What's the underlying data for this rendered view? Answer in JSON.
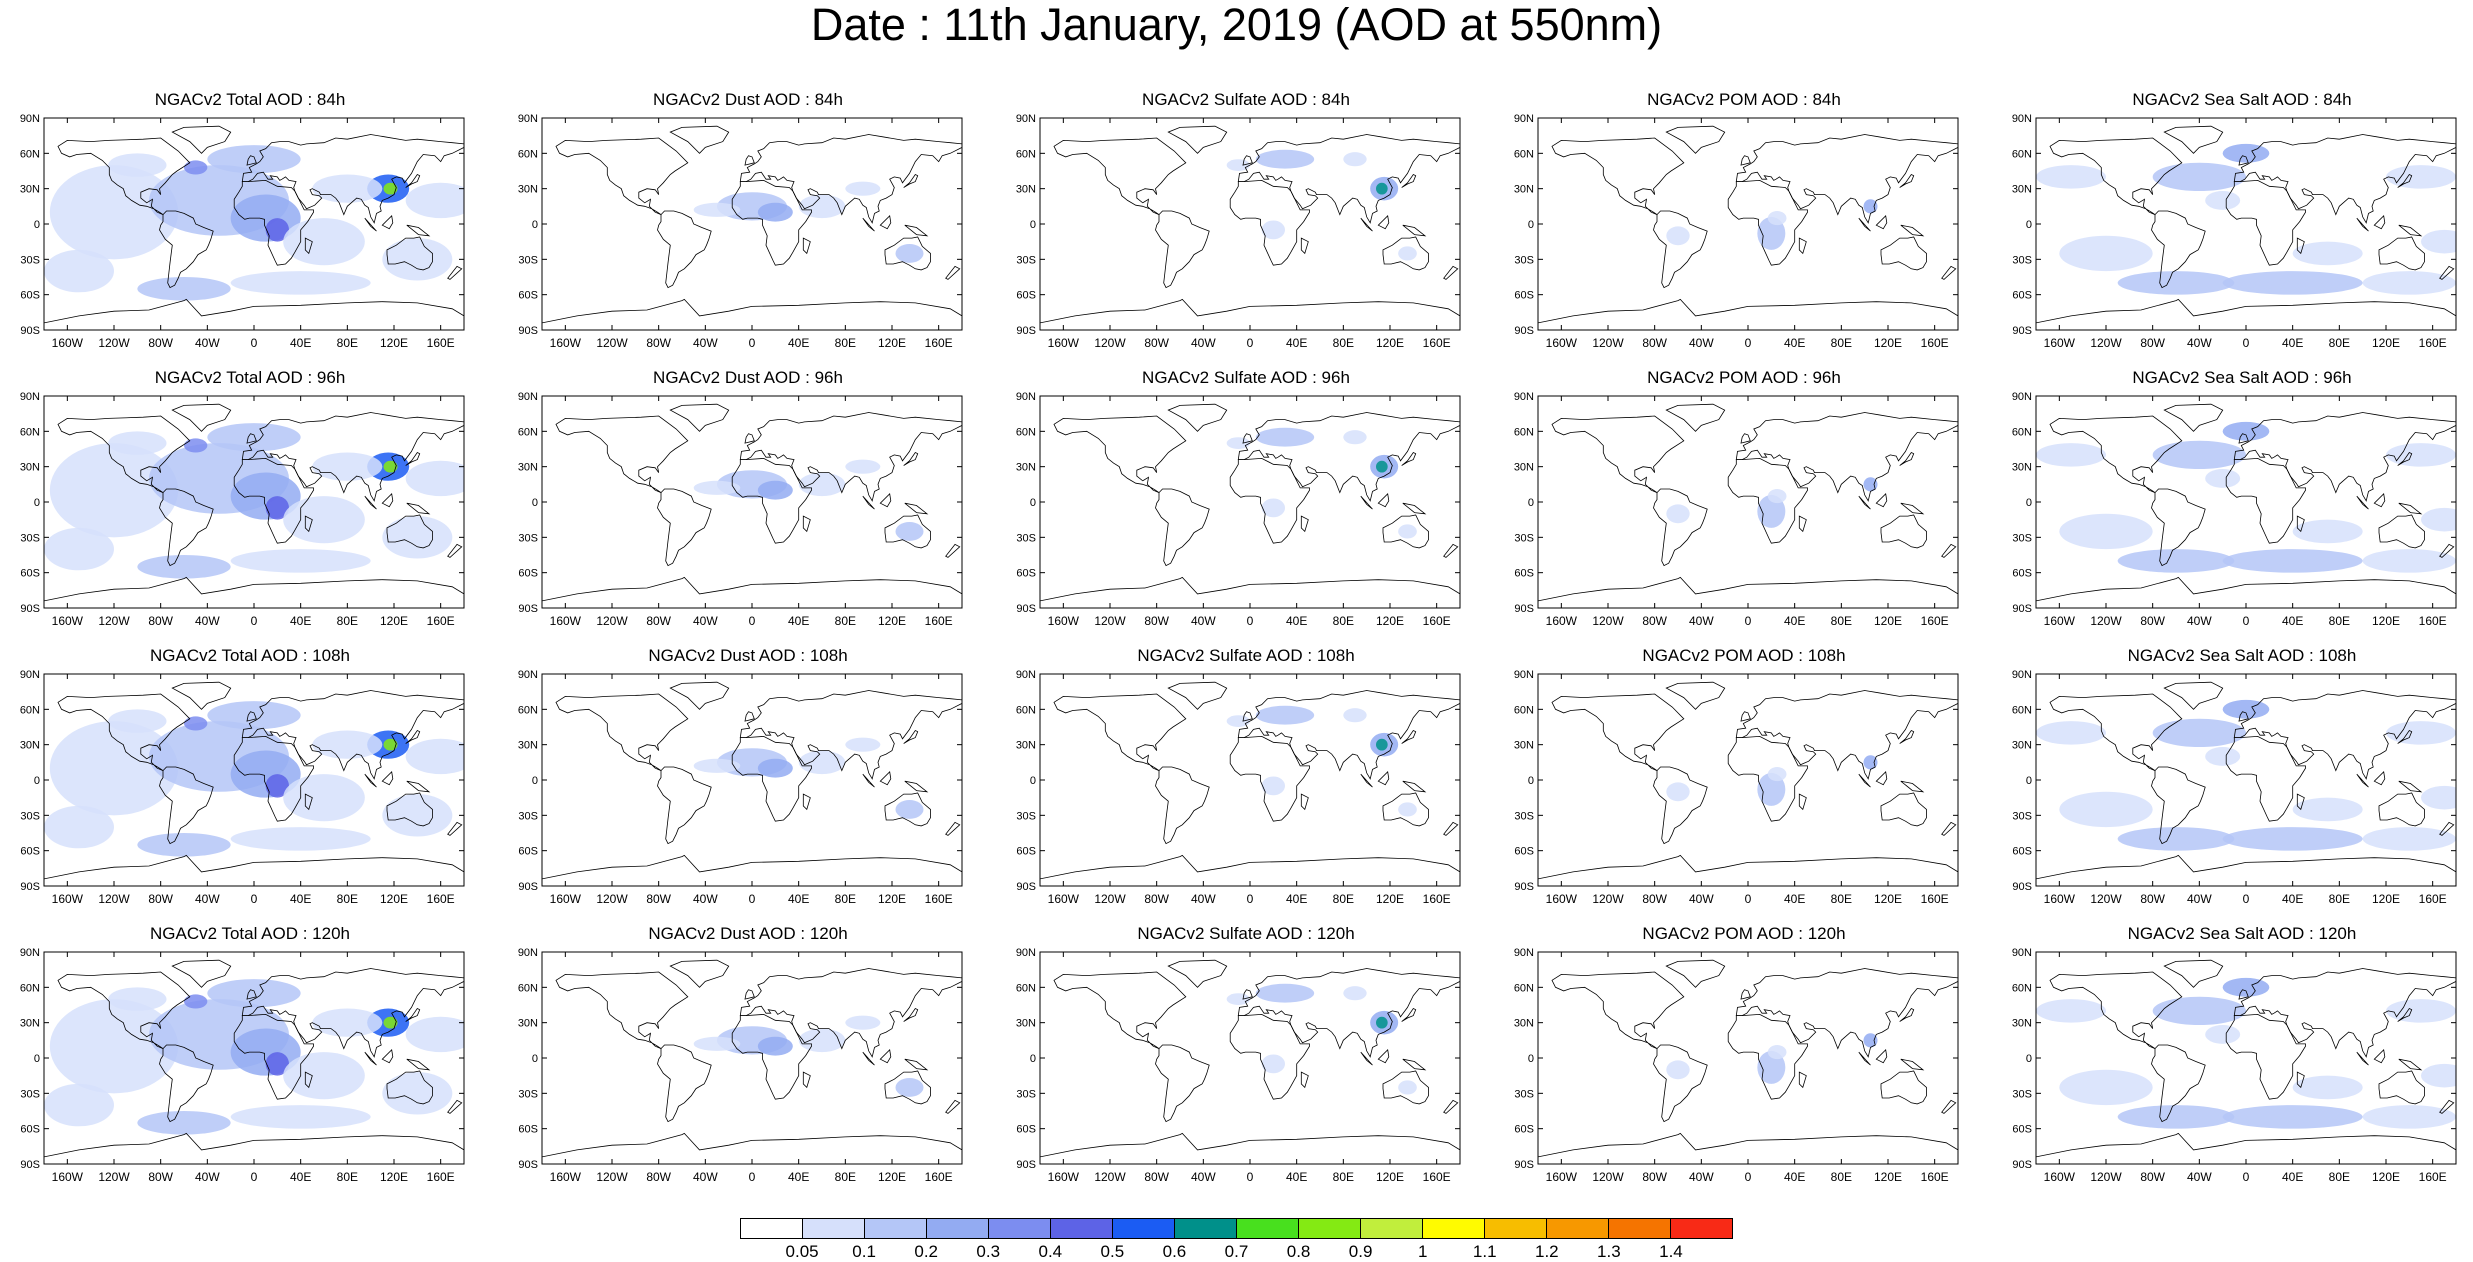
{
  "page_title": "Date : 11th January, 2019 (AOD at 550nm)",
  "panels": [
    {
      "title": "NGACv2 Total AOD : 84h",
      "species": "total",
      "hour": "84h"
    },
    {
      "title": "NGACv2 Dust AOD : 84h",
      "species": "dust",
      "hour": "84h"
    },
    {
      "title": "NGACv2 Sulfate AOD : 84h",
      "species": "sulfate",
      "hour": "84h"
    },
    {
      "title": "NGACv2 POM AOD : 84h",
      "species": "pom",
      "hour": "84h"
    },
    {
      "title": "NGACv2 Sea Salt AOD : 84h",
      "species": "seasalt",
      "hour": "84h"
    },
    {
      "title": "NGACv2 Total AOD : 96h",
      "species": "total",
      "hour": "96h"
    },
    {
      "title": "NGACv2 Dust AOD : 96h",
      "species": "dust",
      "hour": "96h"
    },
    {
      "title": "NGACv2 Sulfate AOD : 96h",
      "species": "sulfate",
      "hour": "96h"
    },
    {
      "title": "NGACv2 POM AOD : 96h",
      "species": "pom",
      "hour": "96h"
    },
    {
      "title": "NGACv2 Sea Salt AOD : 96h",
      "species": "seasalt",
      "hour": "96h"
    },
    {
      "title": "NGACv2 Total AOD : 108h",
      "species": "total",
      "hour": "108h"
    },
    {
      "title": "NGACv2 Dust AOD : 108h",
      "species": "dust",
      "hour": "108h"
    },
    {
      "title": "NGACv2 Sulfate AOD : 108h",
      "species": "sulfate",
      "hour": "108h"
    },
    {
      "title": "NGACv2 POM AOD : 108h",
      "species": "pom",
      "hour": "108h"
    },
    {
      "title": "NGACv2 Sea Salt AOD : 108h",
      "species": "seasalt",
      "hour": "108h"
    },
    {
      "title": "NGACv2 Total AOD : 120h",
      "species": "total",
      "hour": "120h"
    },
    {
      "title": "NGACv2 Dust AOD : 120h",
      "species": "dust",
      "hour": "120h"
    },
    {
      "title": "NGACv2 Sulfate AOD : 120h",
      "species": "sulfate",
      "hour": "120h"
    },
    {
      "title": "NGACv2 POM AOD : 120h",
      "species": "pom",
      "hour": "120h"
    },
    {
      "title": "NGACv2 Sea Salt  AOD : 120h",
      "species": "seasalt",
      "hour": "120h"
    }
  ],
  "lat_labels": [
    "90N",
    "60N",
    "30N",
    "0",
    "30S",
    "60S",
    "90S"
  ],
  "lon_labels": [
    "160W",
    "120W",
    "80W",
    "40W",
    "0",
    "40E",
    "80E",
    "120E",
    "160E"
  ],
  "lon_values": [
    -160,
    -120,
    -80,
    -40,
    0,
    40,
    80,
    120,
    160
  ],
  "lat_values": [
    90,
    60,
    30,
    0,
    -30,
    -60,
    -90
  ],
  "colorbar": {
    "colors": [
      "#ffffff",
      "#d6e0fb",
      "#b4c6f7",
      "#93abf2",
      "#7c8df0",
      "#5d63e6",
      "#1b5cf3",
      "#00908a",
      "#48e01e",
      "#84ea13",
      "#c1ee3c",
      "#fffb00",
      "#f7bd00",
      "#f79800",
      "#f57400",
      "#f82a16"
    ],
    "labels": [
      "0.05",
      "0.1",
      "0.2",
      "0.3",
      "0.4",
      "0.5",
      "0.6",
      "0.7",
      "0.8",
      "0.9",
      "1",
      "1.1",
      "1.2",
      "1.3",
      "1.4"
    ]
  }
}
